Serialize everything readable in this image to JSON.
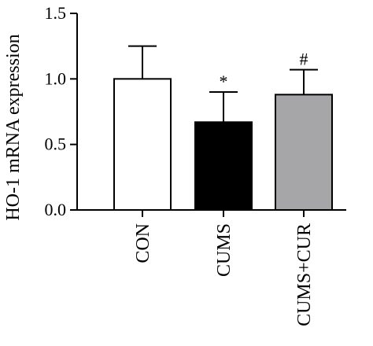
{
  "chart_data": {
    "type": "bar",
    "title": "",
    "xlabel": "",
    "ylabel": "HO-1 mRNA expression",
    "ylim": [
      0,
      1.5
    ],
    "yticks": [
      0.0,
      0.5,
      1.0,
      1.5
    ],
    "ytick_labels": [
      "0.0",
      "0.5",
      "1.0",
      "1.5"
    ],
    "categories": [
      "CON",
      "CUMS",
      "CUMS+CUR"
    ],
    "values": [
      1.0,
      0.67,
      0.88
    ],
    "error_bars": [
      0.25,
      0.23,
      0.19
    ],
    "significance": [
      "",
      "*",
      "#"
    ],
    "bar_colors": [
      "#ffffff",
      "#000000",
      "#a6a6a8"
    ],
    "grid": false,
    "legend": "none"
  }
}
